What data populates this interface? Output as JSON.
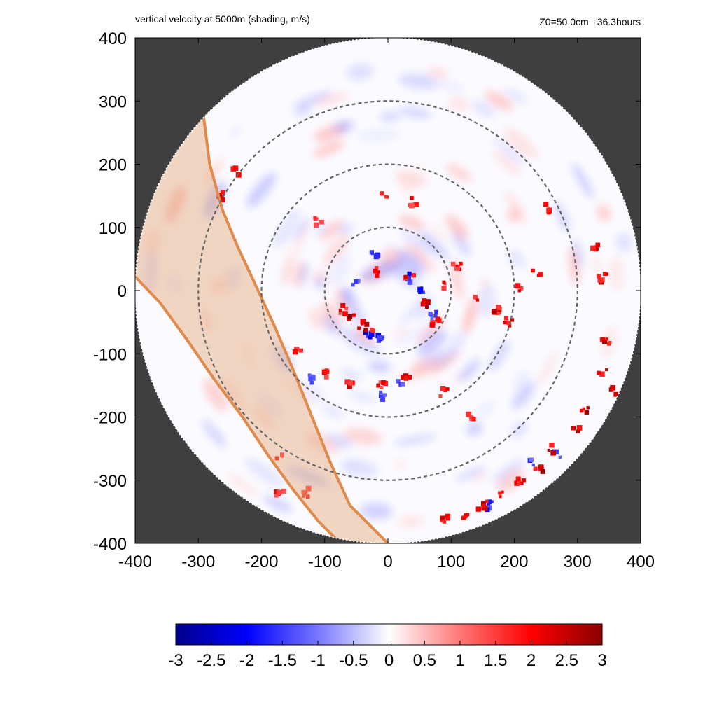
{
  "header": {
    "title_left": "vertical velocity at 5000m (shading, m/s)",
    "title_right": "Z0=50.0cm  +36.3hours"
  },
  "colors": {
    "background_outside": "#3f3f3f",
    "colormap_min": "#00008b",
    "colormap_mid": "#ffffff",
    "colormap_max": "#8b0000",
    "range_rings": "#666666",
    "swath_fill": "#e3a777",
    "swath_edge": "#e08a4c"
  },
  "chart_data": {
    "type": "heatmap",
    "title": "vertical velocity at 5000m (shading, m/s)",
    "annotation": "Z0=50.0cm  +36.3hours",
    "xlim": [
      -400,
      400
    ],
    "ylim": [
      -400,
      400
    ],
    "x_ticks": [
      "-400",
      "-300",
      "-200",
      "-100",
      "0",
      "100",
      "200",
      "300",
      "400"
    ],
    "y_ticks": [
      "400",
      "300",
      "200",
      "100",
      "0",
      "-100",
      "-200",
      "-300",
      "-400"
    ],
    "grid": false,
    "domain_radius": 400,
    "range_rings": [
      100,
      200,
      300
    ],
    "colorbar": {
      "range": [
        -3,
        3
      ],
      "ticks": [
        "-3",
        "-2.5",
        "-2",
        "-1.5",
        "-1",
        "-0.5",
        "0",
        "0.5",
        "1",
        "1.5",
        "2",
        "2.5",
        "3"
      ],
      "placement": "bottom"
    },
    "swath_outline": {
      "outer_edge": [
        [
          -292,
          278
        ],
        [
          -282,
          200
        ],
        [
          -262,
          128
        ],
        [
          -238,
          70
        ],
        [
          -210,
          10
        ],
        [
          -180,
          -55
        ],
        [
          -150,
          -125
        ],
        [
          -120,
          -200
        ],
        [
          -92,
          -270
        ],
        [
          -60,
          -340
        ],
        [
          0,
          -400
        ]
      ],
      "inner_edge": [
        [
          -400,
          22
        ],
        [
          -360,
          -20
        ],
        [
          -320,
          -75
        ],
        [
          -275,
          -140
        ],
        [
          -230,
          -200
        ],
        [
          -190,
          -260
        ],
        [
          -150,
          -315
        ],
        [
          -110,
          -365
        ],
        [
          -75,
          -400
        ]
      ]
    },
    "features": {
      "center": [
        0,
        0
      ],
      "strong_updrafts": [
        [
          -60,
          -40,
          3.0
        ],
        [
          -45,
          -55,
          3.0
        ],
        [
          -30,
          -60,
          2.8
        ],
        [
          -70,
          -30,
          2.5
        ],
        [
          -15,
          30,
          2.6
        ],
        [
          35,
          20,
          2.4
        ],
        [
          60,
          -20,
          2.8
        ],
        [
          75,
          -50,
          2.7
        ],
        [
          95,
          10,
          2.6
        ],
        [
          110,
          40,
          2.5
        ],
        [
          140,
          -10,
          2.4
        ],
        [
          170,
          -30,
          2.6
        ],
        [
          190,
          -50,
          2.8
        ],
        [
          210,
          5,
          2.5
        ],
        [
          235,
          30,
          2.4
        ],
        [
          -140,
          -100,
          2.3
        ],
        [
          -100,
          -130,
          2.2
        ],
        [
          -60,
          -150,
          2.6
        ],
        [
          -10,
          -150,
          2.4
        ],
        [
          30,
          -140,
          2.5
        ],
        [
          90,
          -160,
          2.3
        ],
        [
          130,
          -200,
          2.2
        ],
        [
          -5,
          150,
          2.5
        ],
        [
          40,
          140,
          2.4
        ],
        [
          -110,
          110,
          2.3
        ],
        [
          -260,
          150,
          2.4
        ],
        [
          -240,
          190,
          2.2
        ],
        [
          330,
          70,
          2.8
        ],
        [
          340,
          20,
          2.7
        ],
        [
          345,
          -80,
          2.9
        ],
        [
          340,
          -130,
          3.0
        ],
        [
          355,
          -160,
          2.9
        ],
        [
          310,
          -190,
          2.8
        ],
        [
          300,
          -220,
          2.7
        ],
        [
          260,
          -250,
          2.9
        ],
        [
          240,
          -280,
          3.0
        ],
        [
          210,
          -300,
          2.9
        ],
        [
          180,
          -320,
          2.7
        ],
        [
          150,
          -340,
          2.6
        ],
        [
          120,
          -360,
          2.5
        ],
        [
          90,
          -360,
          2.5
        ],
        [
          250,
          130,
          2.3
        ],
        [
          -170,
          -260,
          2.2
        ],
        [
          -130,
          -320,
          2.3
        ],
        [
          -170,
          -320,
          2.2
        ]
      ],
      "strong_downdrafts": [
        [
          -30,
          -70,
          -2.6
        ],
        [
          -10,
          -75,
          -2.4
        ],
        [
          30,
          20,
          -2.3
        ],
        [
          50,
          0,
          -2.0
        ],
        [
          -20,
          60,
          -1.8
        ],
        [
          20,
          -150,
          -2.0
        ],
        [
          -10,
          -165,
          -1.8
        ],
        [
          -120,
          -140,
          -1.5
        ],
        [
          160,
          -340,
          -2.2
        ],
        [
          270,
          -260,
          -2.0
        ],
        [
          230,
          -270,
          -1.8
        ],
        [
          70,
          -40,
          -1.7
        ],
        [
          -50,
          10,
          -1.6
        ]
      ]
    }
  }
}
